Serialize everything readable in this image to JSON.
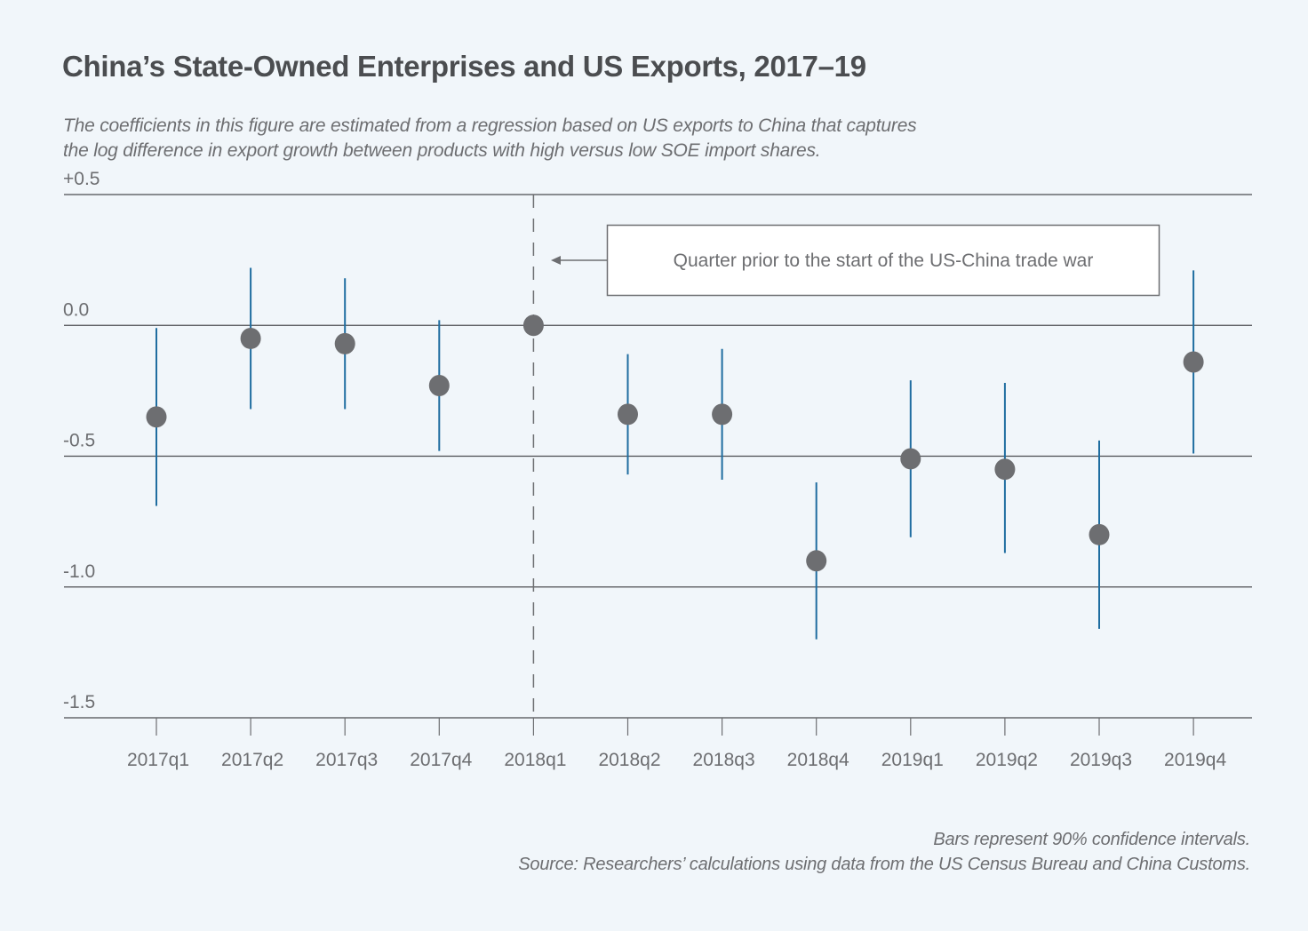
{
  "header": {
    "title": "China’s State-Owned Enterprises and US Exports, 2017–19",
    "subtitle_line1": "The coefficients in this figure are estimated from a regression based on US exports to China that captures",
    "subtitle_line2": "the log difference in export growth between products with high versus low SOE import shares."
  },
  "footer": {
    "note": "Bars represent 90% confidence intervals.",
    "source": "Source: Researchers’ calculations using data from the US Census Bureau and China Customs."
  },
  "colors": {
    "background": "#f1f6fa",
    "point": "#6d6e71",
    "ci_bar": "#1f6da0",
    "gridline": "#4b4d50",
    "reference_line": "#6d6e71"
  },
  "chart_data": {
    "type": "scatter",
    "subtype": "coefficient plot with confidence intervals",
    "title": "China’s State-Owned Enterprises and US Exports, 2017–19",
    "xlabel": "",
    "ylabel": "",
    "ylim": [
      -1.5,
      0.5
    ],
    "y_ticks": [
      0.5,
      0.0,
      -0.5,
      -1.0,
      -1.5
    ],
    "y_tick_labels": [
      "+0.5",
      "0.0",
      "-0.5",
      "-1.0",
      "-1.5"
    ],
    "grid": true,
    "categories": [
      "2017q1",
      "2017q2",
      "2017q3",
      "2017q4",
      "2018q1",
      "2018q2",
      "2018q3",
      "2018q4",
      "2019q1",
      "2019q2",
      "2019q3",
      "2019q4"
    ],
    "series": [
      {
        "name": "Coefficient",
        "values": [
          -0.35,
          -0.05,
          -0.07,
          -0.23,
          0.0,
          -0.34,
          -0.34,
          -0.9,
          -0.51,
          -0.55,
          -0.8,
          -0.14
        ],
        "ci_low": [
          -0.69,
          -0.32,
          -0.32,
          -0.48,
          null,
          -0.57,
          -0.59,
          -1.2,
          -0.81,
          -0.87,
          -1.16,
          -0.49
        ],
        "ci_high": [
          -0.01,
          0.22,
          0.18,
          0.02,
          null,
          -0.11,
          -0.09,
          -0.6,
          -0.21,
          -0.22,
          -0.44,
          0.21
        ]
      }
    ],
    "reference_line": {
      "category": "2018q1",
      "style": "dashed"
    },
    "annotations": [
      {
        "text": "Quarter prior to the start of the US-China trade war",
        "points_to": "2018q1"
      }
    ],
    "legend": "none"
  }
}
